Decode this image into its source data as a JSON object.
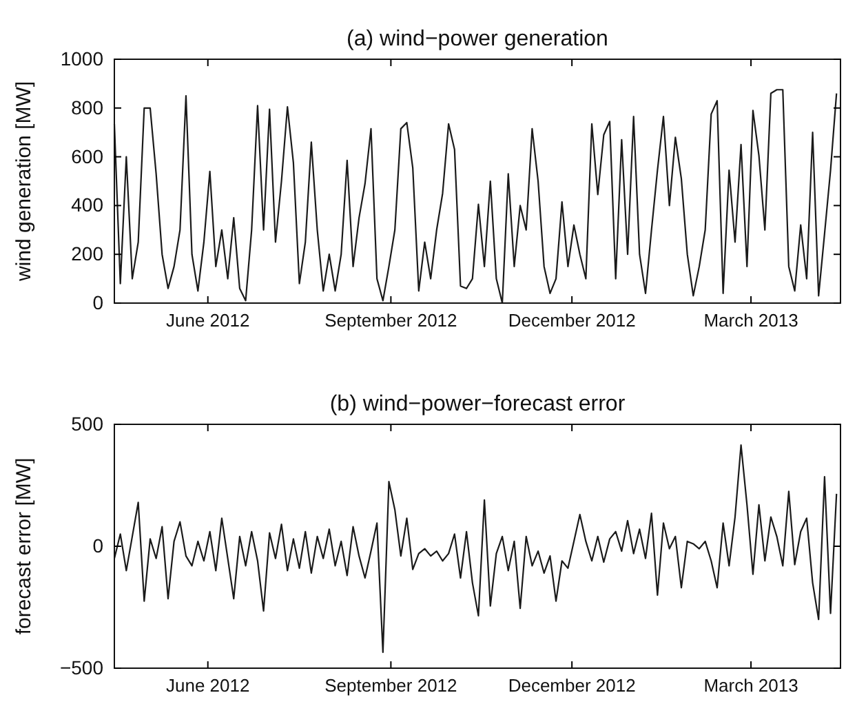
{
  "chart_data": [
    {
      "type": "line",
      "title": "(a) wind−power generation",
      "ylabel": "wind generation [MW]",
      "color": "#1a1a1a",
      "x": [
        "2012-04-15",
        "2012-04-18",
        "2012-04-21",
        "2012-04-24",
        "2012-04-27",
        "2012-04-30",
        "2012-05-03",
        "2012-05-06",
        "2012-05-09",
        "2012-05-12",
        "2012-05-15",
        "2012-05-18",
        "2012-05-21",
        "2012-05-24",
        "2012-05-27",
        "2012-05-30",
        "2012-06-02",
        "2012-06-05",
        "2012-06-08",
        "2012-06-11",
        "2012-06-14",
        "2012-06-17",
        "2012-06-20",
        "2012-06-23",
        "2012-06-26",
        "2012-06-29",
        "2012-07-02",
        "2012-07-05",
        "2012-07-08",
        "2012-07-11",
        "2012-07-14",
        "2012-07-17",
        "2012-07-20",
        "2012-07-23",
        "2012-07-26",
        "2012-07-29",
        "2012-08-01",
        "2012-08-04",
        "2012-08-07",
        "2012-08-10",
        "2012-08-13",
        "2012-08-16",
        "2012-08-19",
        "2012-08-22",
        "2012-08-25",
        "2012-08-28",
        "2012-08-31",
        "2012-09-03",
        "2012-09-06",
        "2012-09-09",
        "2012-09-12",
        "2012-09-15",
        "2012-09-18",
        "2012-09-21",
        "2012-09-24",
        "2012-09-27",
        "2012-09-30",
        "2012-10-03",
        "2012-10-06",
        "2012-10-09",
        "2012-10-12",
        "2012-10-15",
        "2012-10-18",
        "2012-10-21",
        "2012-10-24",
        "2012-10-27",
        "2012-10-30",
        "2012-11-02",
        "2012-11-05",
        "2012-11-08",
        "2012-11-11",
        "2012-11-14",
        "2012-11-17",
        "2012-11-20",
        "2012-11-23",
        "2012-11-26",
        "2012-11-29",
        "2012-12-02",
        "2012-12-05",
        "2012-12-08",
        "2012-12-11",
        "2012-12-14",
        "2012-12-17",
        "2012-12-20",
        "2012-12-23",
        "2012-12-26",
        "2012-12-29",
        "2013-01-01",
        "2013-01-04",
        "2013-01-07",
        "2013-01-10",
        "2013-01-13",
        "2013-01-16",
        "2013-01-19",
        "2013-01-22",
        "2013-01-25",
        "2013-01-28",
        "2013-01-31",
        "2013-02-03",
        "2013-02-06",
        "2013-02-09",
        "2013-02-12",
        "2013-02-15",
        "2013-02-18",
        "2013-02-21",
        "2013-02-24",
        "2013-02-27",
        "2013-03-02",
        "2013-03-05",
        "2013-03-08",
        "2013-03-11",
        "2013-03-14",
        "2013-03-17",
        "2013-03-20",
        "2013-03-23",
        "2013-03-26",
        "2013-03-29",
        "2013-04-01",
        "2013-04-04",
        "2013-04-07",
        "2013-04-10",
        "2013-04-13"
      ],
      "values": [
        735,
        80,
        600,
        100,
        250,
        800,
        800,
        530,
        200,
        60,
        150,
        300,
        850,
        200,
        50,
        250,
        540,
        150,
        300,
        100,
        350,
        60,
        10,
        300,
        810,
        300,
        795,
        250,
        500,
        805,
        575,
        80,
        250,
        660,
        300,
        50,
        200,
        50,
        200,
        585,
        150,
        350,
        490,
        715,
        100,
        10,
        150,
        300,
        715,
        740,
        555,
        50,
        250,
        100,
        300,
        450,
        735,
        630,
        70,
        60,
        100,
        405,
        150,
        500,
        100,
        0,
        530,
        150,
        400,
        300,
        715,
        500,
        150,
        40,
        100,
        415,
        150,
        320,
        200,
        100,
        735,
        445,
        690,
        745,
        100,
        670,
        200,
        765,
        200,
        40,
        300,
        545,
        765,
        400,
        680,
        510,
        200,
        30,
        150,
        300,
        775,
        830,
        40,
        545,
        250,
        650,
        150,
        790,
        605,
        300,
        860,
        875,
        875,
        150,
        50,
        320,
        100,
        700,
        30,
        285,
        545,
        860
      ],
      "xlim": [
        "2012-04-15",
        "2013-04-15"
      ],
      "xticks": [
        {
          "value": "2012-06-01",
          "label": "June 2012"
        },
        {
          "value": "2012-09-01",
          "label": "September 2012"
        },
        {
          "value": "2012-12-01",
          "label": "December 2012"
        },
        {
          "value": "2013-03-01",
          "label": "March 2013"
        }
      ],
      "ylim": [
        0,
        1000
      ],
      "yticks": [
        0,
        200,
        400,
        600,
        800,
        1000
      ]
    },
    {
      "type": "line",
      "title": "(b) wind−power−forecast error",
      "ylabel": "forecast error [MW]",
      "color": "#1a1a1a",
      "x": [
        "2012-04-15",
        "2012-04-18",
        "2012-04-21",
        "2012-04-24",
        "2012-04-27",
        "2012-04-30",
        "2012-05-03",
        "2012-05-06",
        "2012-05-09",
        "2012-05-12",
        "2012-05-15",
        "2012-05-18",
        "2012-05-21",
        "2012-05-24",
        "2012-05-27",
        "2012-05-30",
        "2012-06-02",
        "2012-06-05",
        "2012-06-08",
        "2012-06-11",
        "2012-06-14",
        "2012-06-17",
        "2012-06-20",
        "2012-06-23",
        "2012-06-26",
        "2012-06-29",
        "2012-07-02",
        "2012-07-05",
        "2012-07-08",
        "2012-07-11",
        "2012-07-14",
        "2012-07-17",
        "2012-07-20",
        "2012-07-23",
        "2012-07-26",
        "2012-07-29",
        "2012-08-01",
        "2012-08-04",
        "2012-08-07",
        "2012-08-10",
        "2012-08-13",
        "2012-08-16",
        "2012-08-19",
        "2012-08-22",
        "2012-08-25",
        "2012-08-28",
        "2012-08-31",
        "2012-09-03",
        "2012-09-06",
        "2012-09-09",
        "2012-09-12",
        "2012-09-15",
        "2012-09-18",
        "2012-09-21",
        "2012-09-24",
        "2012-09-27",
        "2012-09-30",
        "2012-10-03",
        "2012-10-06",
        "2012-10-09",
        "2012-10-12",
        "2012-10-15",
        "2012-10-18",
        "2012-10-21",
        "2012-10-24",
        "2012-10-27",
        "2012-10-30",
        "2012-11-02",
        "2012-11-05",
        "2012-11-08",
        "2012-11-11",
        "2012-11-14",
        "2012-11-17",
        "2012-11-20",
        "2012-11-23",
        "2012-11-26",
        "2012-11-29",
        "2012-12-02",
        "2012-12-05",
        "2012-12-08",
        "2012-12-11",
        "2012-12-14",
        "2012-12-17",
        "2012-12-20",
        "2012-12-23",
        "2012-12-26",
        "2012-12-29",
        "2013-01-01",
        "2013-01-04",
        "2013-01-07",
        "2013-01-10",
        "2013-01-13",
        "2013-01-16",
        "2013-01-19",
        "2013-01-22",
        "2013-01-25",
        "2013-01-28",
        "2013-01-31",
        "2013-02-03",
        "2013-02-06",
        "2013-02-09",
        "2013-02-12",
        "2013-02-15",
        "2013-02-18",
        "2013-02-21",
        "2013-02-24",
        "2013-02-27",
        "2013-03-02",
        "2013-03-05",
        "2013-03-08",
        "2013-03-11",
        "2013-03-14",
        "2013-03-17",
        "2013-03-20",
        "2013-03-23",
        "2013-03-26",
        "2013-03-29",
        "2013-04-01",
        "2013-04-04",
        "2013-04-07",
        "2013-04-10",
        "2013-04-13"
      ],
      "values": [
        -50,
        50,
        -100,
        40,
        180,
        -225,
        30,
        -50,
        80,
        -215,
        20,
        100,
        -40,
        -80,
        20,
        -60,
        60,
        -100,
        115,
        -50,
        -215,
        40,
        -80,
        60,
        -60,
        -265,
        55,
        -50,
        90,
        -100,
        30,
        -90,
        60,
        -110,
        40,
        -50,
        70,
        -80,
        20,
        -120,
        80,
        -40,
        -130,
        -20,
        95,
        -435,
        265,
        150,
        -40,
        115,
        -95,
        -30,
        -10,
        -40,
        -20,
        -60,
        -30,
        50,
        -130,
        60,
        -150,
        -285,
        190,
        -245,
        -30,
        40,
        -100,
        20,
        -255,
        40,
        -80,
        -20,
        -110,
        -40,
        -225,
        -60,
        -90,
        20,
        130,
        20,
        -60,
        40,
        -65,
        30,
        60,
        -20,
        105,
        -30,
        70,
        -50,
        135,
        -200,
        95,
        -10,
        40,
        -170,
        20,
        10,
        -10,
        20,
        -60,
        -170,
        95,
        -80,
        120,
        415,
        170,
        -115,
        170,
        -60,
        120,
        40,
        -80,
        225,
        -75,
        60,
        115,
        -150,
        -300,
        285,
        -275,
        215
      ],
      "xlim": [
        "2012-04-15",
        "2013-04-15"
      ],
      "xticks": [
        {
          "value": "2012-06-01",
          "label": "June 2012"
        },
        {
          "value": "2012-09-01",
          "label": "September 2012"
        },
        {
          "value": "2012-12-01",
          "label": "December 2012"
        },
        {
          "value": "2013-03-01",
          "label": "March 2013"
        }
      ],
      "ylim": [
        -500,
        500
      ],
      "yticks": [
        {
          "value": -500,
          "label": "−500"
        },
        0,
        500
      ]
    }
  ]
}
